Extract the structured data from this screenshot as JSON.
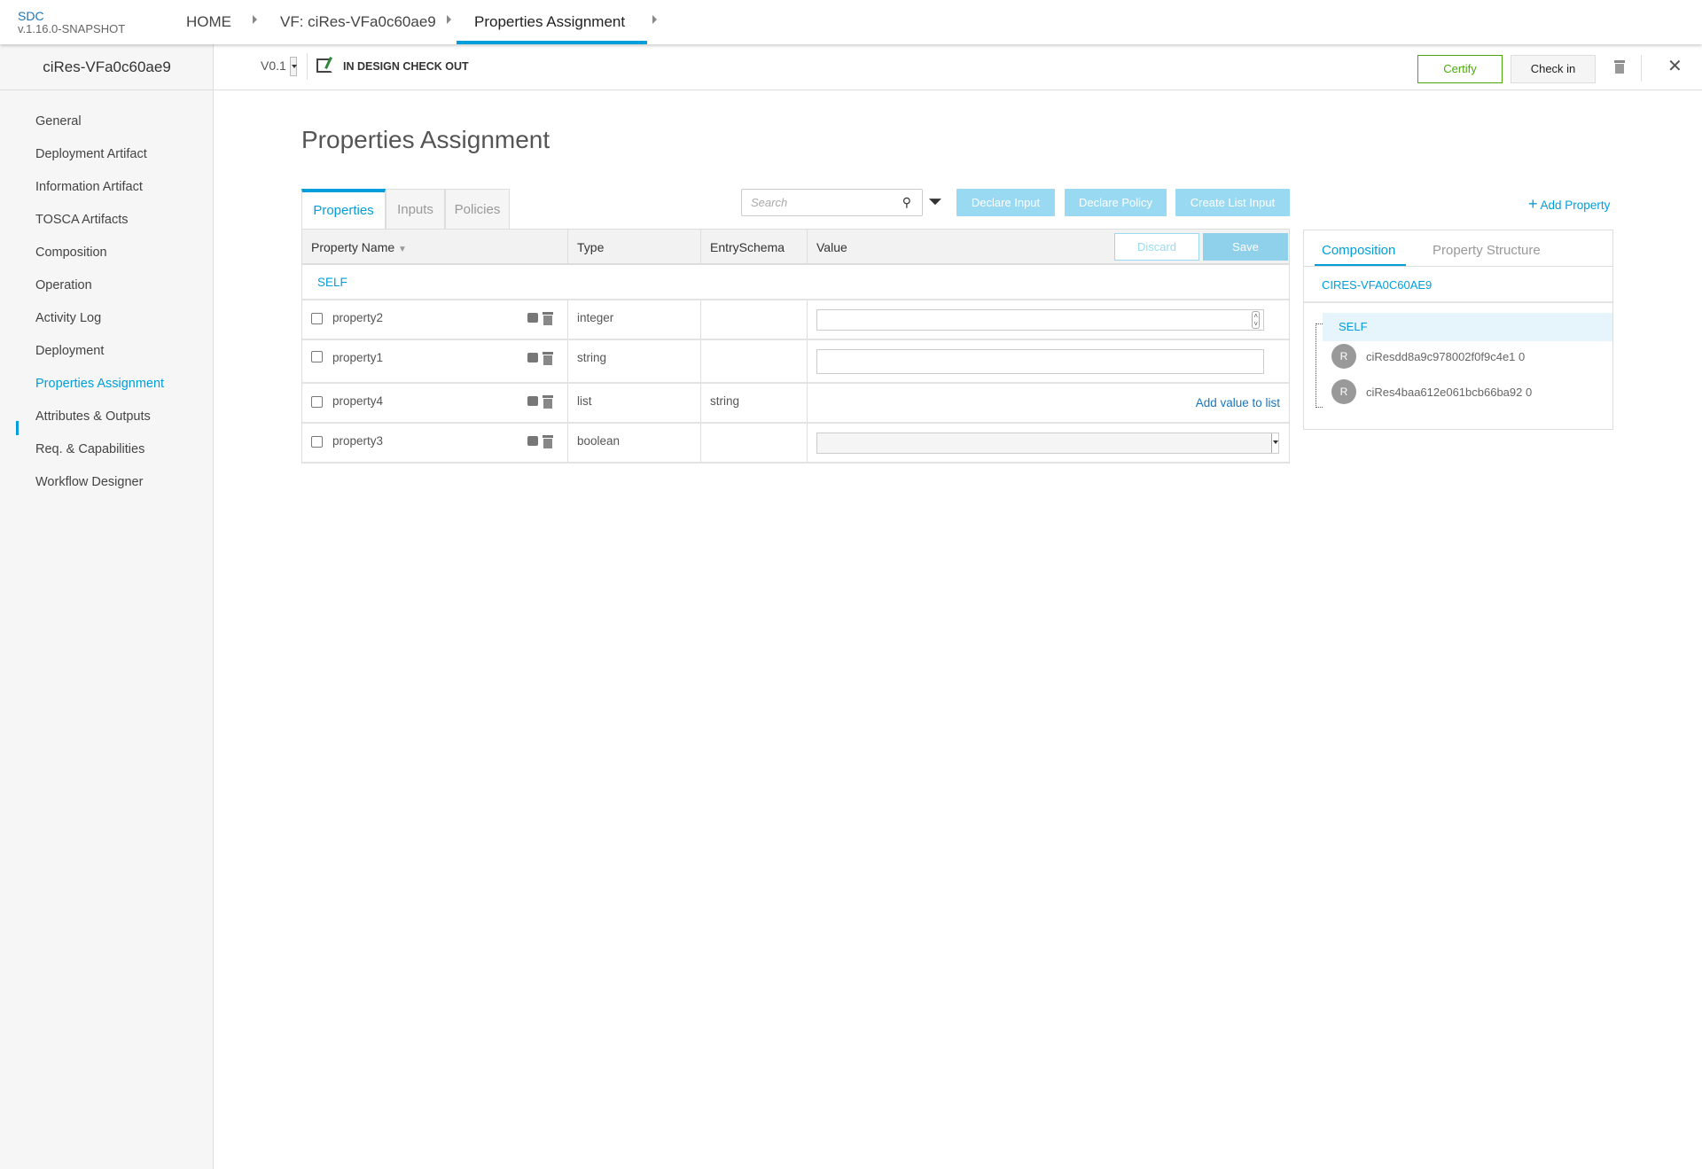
{
  "header": {
    "app": "SDC",
    "version": "v.1.16.0-SNAPSHOT",
    "breadcrumbs": [
      "HOME",
      "VF: ciRes-VFa0c60ae9",
      "Properties Assignment"
    ]
  },
  "sidebar": {
    "title": "ciRes-VFa0c60ae9",
    "active": "Properties Assignment",
    "items": [
      "General",
      "Deployment Artifact",
      "Information Artifact",
      "TOSCA Artifacts",
      "Composition",
      "Operation",
      "Activity Log",
      "Deployment",
      "Properties Assignment",
      "Attributes & Outputs",
      "Req. & Capabilities",
      "Workflow Designer"
    ]
  },
  "subbar": {
    "version": "V0.1",
    "status": "IN DESIGN CHECK OUT",
    "certify": "Certify",
    "checkin": "Check in"
  },
  "main": {
    "title": "Properties Assignment",
    "tabs": [
      "Properties",
      "Inputs",
      "Policies"
    ],
    "search_placeholder": "Search",
    "buttons": {
      "declare_input": "Declare Input",
      "declare_policy": "Declare Policy",
      "create_list_input": "Create List Input",
      "add_property": "Add Property",
      "discard": "Discard",
      "save": "Save"
    },
    "columns": [
      "Property Name",
      "Type",
      "EntrySchema",
      "Value"
    ],
    "group": "SELF",
    "rows": [
      {
        "name": "property2",
        "type": "integer",
        "schema": "",
        "value": ""
      },
      {
        "name": "property1",
        "type": "string",
        "schema": "",
        "value": ""
      },
      {
        "name": "property4",
        "type": "list",
        "schema": "string",
        "value": "Add value to list"
      },
      {
        "name": "property3",
        "type": "boolean",
        "schema": "",
        "value": ""
      }
    ]
  },
  "panel": {
    "tabs": [
      "Composition",
      "Property Structure"
    ],
    "root": "CIRES-VFA0C60AE9",
    "self": "SELF",
    "children": [
      {
        "badge": "R",
        "name": "ciResdd8a9c978002f0f9c4e1 0"
      },
      {
        "badge": "R",
        "name": "ciRes4baa612e061bcb66ba92 0"
      }
    ]
  },
  "colors": {
    "accent": "#009fdb",
    "certify": "#4ca90c",
    "button_disabled": "#99daf2"
  }
}
